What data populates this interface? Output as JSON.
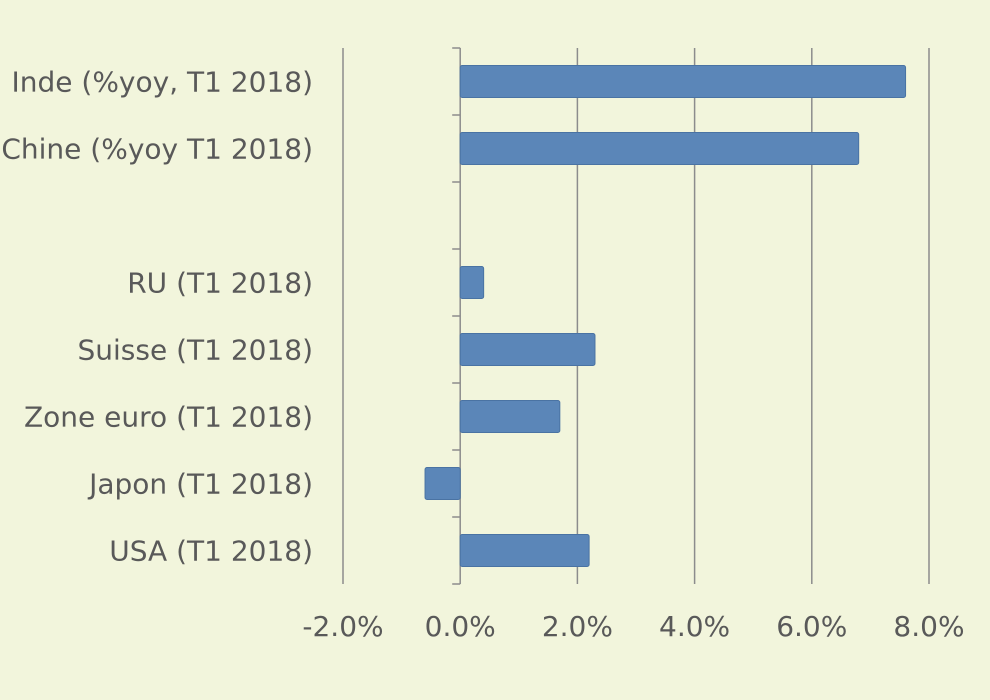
{
  "chart_data": {
    "type": "bar",
    "orientation": "horizontal",
    "title": "",
    "xlabel": "",
    "ylabel": "",
    "categories": [
      "Inde (%yoy, T1 2018)",
      "Chine (%yoy T1 2018)",
      "",
      "RU (T1 2018)",
      "Suisse (T1 2018)",
      "Zone euro (T1 2018)",
      "Japon (T1 2018)",
      "USA (T1 2018)"
    ],
    "values": [
      7.6,
      6.8,
      null,
      0.4,
      2.3,
      1.7,
      -0.6,
      2.2
    ],
    "xlim": [
      -2.0,
      8.0
    ],
    "x_ticks": [
      "-2.0%",
      "0.0%",
      "2.0%",
      "4.0%",
      "6.0%",
      "8.0%"
    ],
    "grid": true,
    "legend": "none",
    "colors": {
      "background": "#f2f5dc",
      "bar": "#5b86b8",
      "bar_edge": "#4a73a3",
      "gridline": "#8c8c8c",
      "text": "#595959"
    }
  }
}
